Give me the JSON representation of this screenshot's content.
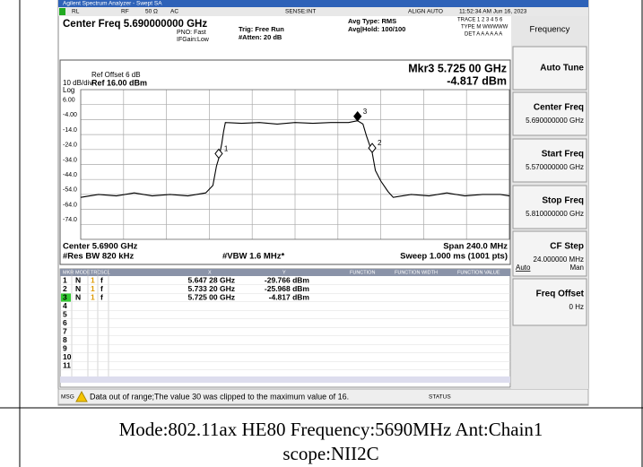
{
  "window_title": "Agilent Spectrum Analyzer - Swept SA",
  "status_row": {
    "rl": "RL",
    "rf": "RF",
    "impedance": "50 Ω",
    "coupling": "AC",
    "sense": "SENSE:INT",
    "align": "ALIGN AUTO",
    "time": "11:52:34 AM Jun 16, 2023"
  },
  "settings": {
    "center_freq": "Center Freq 5.690000000 GHz",
    "pno": "PNO: Fast",
    "ifgain": "IFGain:Low",
    "trig": "Trig: Free Run",
    "atten": "#Atten: 20 dB",
    "avg_type": "Avg Type: RMS",
    "avg_hold": "Avg|Hold: 100/100",
    "trace": "TRACE 1 2 3 4 5 6",
    "type": "TYPE M WWWWW",
    "det": "DET A A A A A A"
  },
  "softkeys": [
    {
      "label": "Frequency"
    },
    {
      "label": "Auto Tune"
    },
    {
      "label": "Center Freq",
      "value": "5.690000000 GHz"
    },
    {
      "label": "Start Freq",
      "value": "5.570000000 GHz"
    },
    {
      "label": "Stop Freq",
      "value": "5.810000000 GHz"
    },
    {
      "label": "CF Step",
      "value": "24.000000 MHz",
      "options": [
        "Auto",
        "Man"
      ]
    },
    {
      "label": "Freq Offset",
      "value": "0 Hz"
    }
  ],
  "graph": {
    "ref_offset": "Ref Offset 6 dB",
    "scale": "10 dB/div",
    "ref_level": "Ref 16.00 dBm",
    "log": "Log",
    "marker_readout": {
      "label": "Mkr3 5.725 00 GHz",
      "value": "-4.817 dBm"
    },
    "ylim": [
      -84,
      16
    ],
    "yticks": [
      {
        "value": 6,
        "label": "6.00"
      },
      {
        "value": -4,
        "label": "-4.00"
      },
      {
        "value": -14,
        "label": "-14.0"
      },
      {
        "value": -24,
        "label": "-24.0"
      },
      {
        "value": -34,
        "label": "-34.0"
      },
      {
        "value": -44,
        "label": "-44.0"
      },
      {
        "value": -54,
        "label": "-54.0"
      },
      {
        "value": -64,
        "label": "-64.0"
      },
      {
        "value": -74,
        "label": "-74.0"
      }
    ],
    "xlim": [
      5.57,
      5.81
    ],
    "xticks": [
      5.57,
      5.594,
      5.618,
      5.642,
      5.666,
      5.69,
      5.714,
      5.738,
      5.762,
      5.786,
      5.81
    ],
    "trace": {
      "x": [
        5.57,
        5.58,
        5.59,
        5.6,
        5.61,
        5.62,
        5.63,
        5.64,
        5.644,
        5.646,
        5.6473,
        5.649,
        5.65,
        5.651,
        5.66,
        5.67,
        5.68,
        5.69,
        5.7,
        5.71,
        5.72,
        5.725,
        5.728,
        5.73,
        5.7332,
        5.735,
        5.738,
        5.742,
        5.745,
        5.755,
        5.765,
        5.775,
        5.785,
        5.795,
        5.805,
        5.81
      ],
      "y": [
        -56,
        -54,
        -55,
        -53,
        -55,
        -54,
        -55,
        -53,
        -48,
        -35,
        -29.8,
        -20,
        -12,
        -6,
        -6.5,
        -6,
        -7,
        -6,
        -6.5,
        -6,
        -6,
        -4.8,
        -7,
        -15,
        -26,
        -38,
        -45,
        -52,
        -56,
        -54,
        -55,
        -53,
        -55,
        -54,
        -54,
        -55
      ],
      "color": "#000000"
    },
    "markers": [
      {
        "label": "1",
        "x": 5.64728,
        "y": -29.766
      },
      {
        "label": "2",
        "x": 5.7332,
        "y": -25.968
      },
      {
        "label": "3",
        "x": 5.725,
        "y": -4.817
      }
    ],
    "footer": {
      "center": "Center 5.6900 GHz",
      "rbw": "#Res BW 820 kHz",
      "vbw": "#VBW 1.6 MHz*",
      "span": "Span 240.0 MHz",
      "sweep": "Sweep  1.000 ms (1001 pts)"
    }
  },
  "marker_table": {
    "headers": [
      "MKR",
      "MODE",
      "TRC",
      "SCL",
      "X",
      "Y",
      "FUNCTION",
      "FUNCTION WIDTH",
      "FUNCTION VALUE"
    ],
    "rows": [
      [
        "1",
        "N",
        "1",
        "f",
        "5.647 28 GHz",
        "-29.766 dBm"
      ],
      [
        "2",
        "N",
        "1",
        "f",
        "5.733 20 GHz",
        "-25.968 dBm"
      ],
      [
        "3",
        "N",
        "1",
        "f",
        "5.725 00 GHz",
        "-4.817 dBm"
      ],
      [
        "4"
      ],
      [
        "5"
      ],
      [
        "6"
      ],
      [
        "7"
      ],
      [
        "8"
      ],
      [
        "9"
      ],
      [
        "10"
      ],
      [
        "11"
      ]
    ]
  },
  "message": {
    "label": "MSG",
    "text": "Data out of range;The value 30 was clipped to the maximum value of 16.",
    "status": "STATUS"
  },
  "caption": [
    "Mode:802.11ax HE80 Frequency:5690MHz Ant:Chain1",
    "scope:NII2C"
  ]
}
